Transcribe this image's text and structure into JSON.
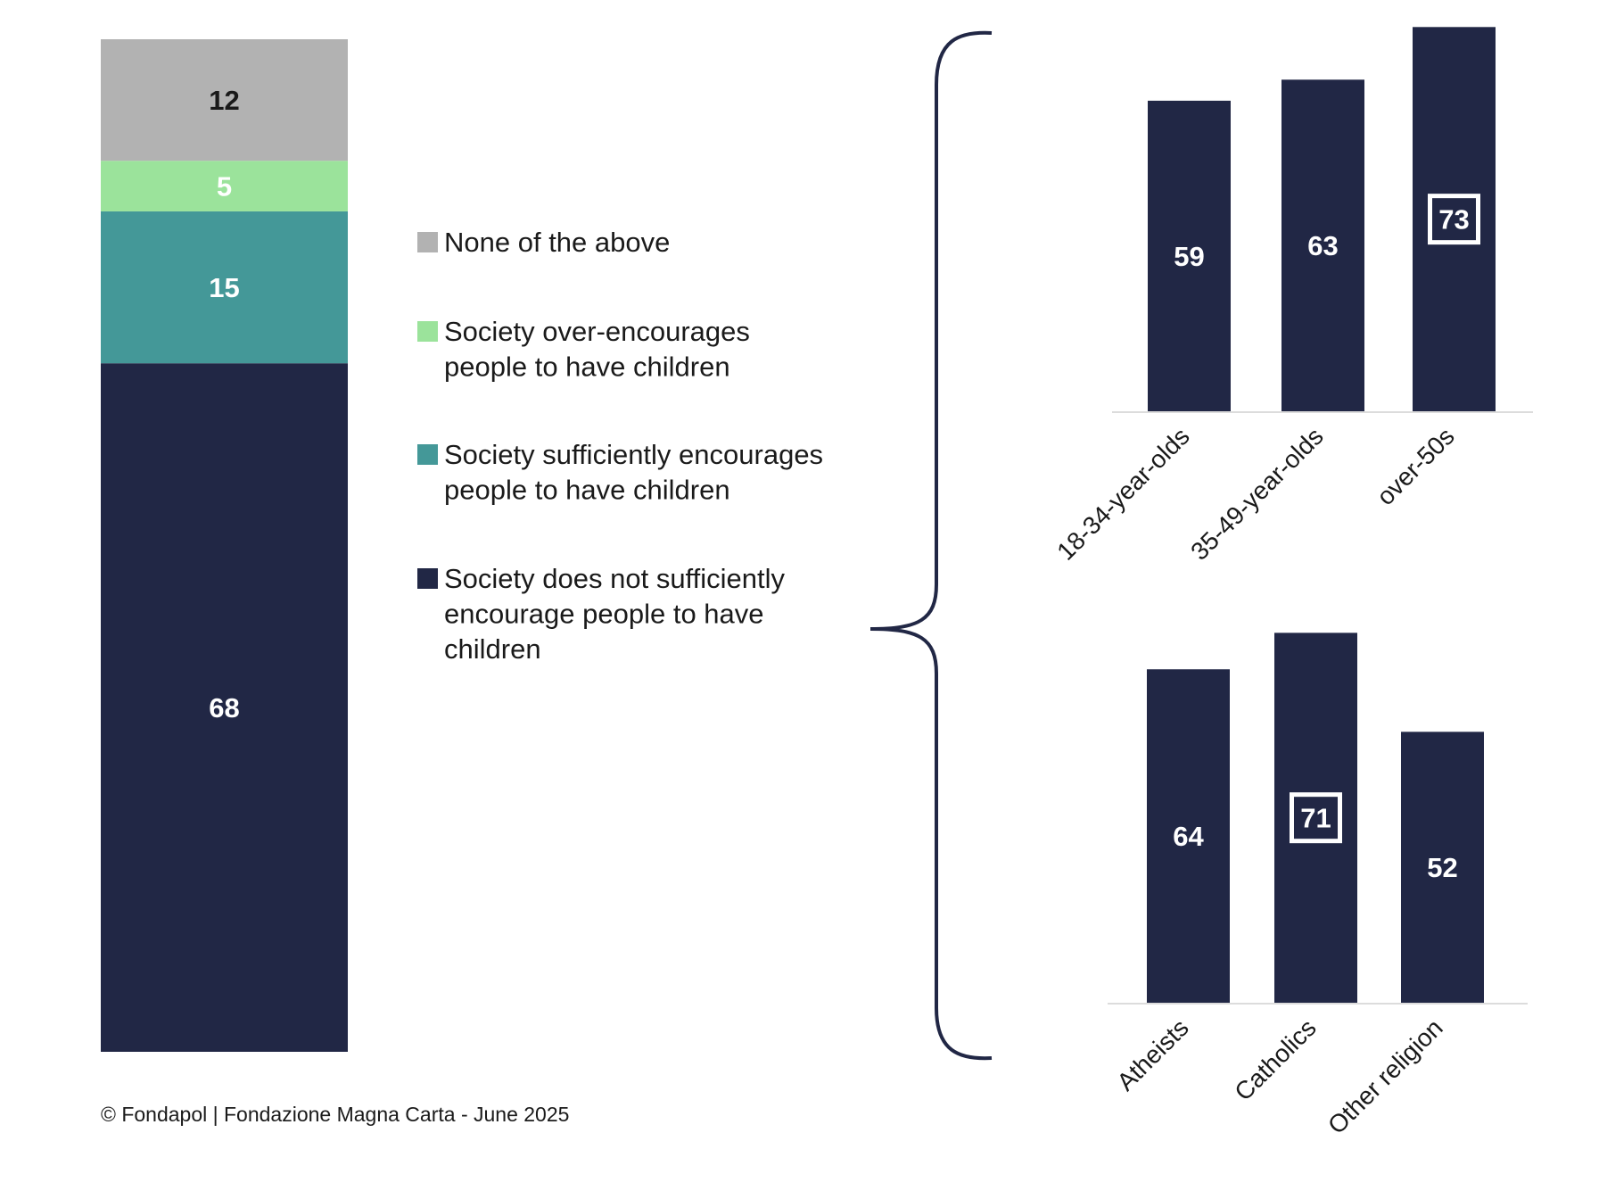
{
  "colors": {
    "navy": "#212745",
    "gray": "#b2b2b2",
    "green": "#9be39b",
    "teal": "#449898",
    "axis": "#dcdcdc"
  },
  "chart_data": [
    {
      "type": "bar",
      "stacked": true,
      "categories": [
        "Total"
      ],
      "series": [
        {
          "name": "Society does not sufficiently encourage people to have children",
          "values": [
            68
          ],
          "color": "#212745",
          "label_color": "#ffffff"
        },
        {
          "name": "Society sufficiently encourages people to have children",
          "values": [
            15
          ],
          "color": "#449898",
          "label_color": "#ffffff"
        },
        {
          "name": "Society over-encourages people to have children",
          "values": [
            5
          ],
          "color": "#9be39b",
          "label_color": "#ffffff"
        },
        {
          "name": "None of the above",
          "values": [
            12
          ],
          "color": "#b2b2b2",
          "label_color": "#1a1a1a"
        }
      ],
      "legend": [
        {
          "lines": [
            "None of the above"
          ],
          "color": "#b2b2b2"
        },
        {
          "lines": [
            "Society over-encourages",
            "people to have children"
          ],
          "color": "#9be39b"
        },
        {
          "lines": [
            "Society sufficiently encourages",
            "people to have children"
          ],
          "color": "#449898"
        },
        {
          "lines": [
            "Society does not sufficiently",
            "encourage people to have",
            "children"
          ],
          "color": "#212745"
        }
      ],
      "legend_placement": "right",
      "ylim": [
        0,
        100
      ]
    },
    {
      "type": "bar",
      "title": "",
      "categories": [
        "18-34-year-olds",
        "35-49-year-olds",
        "over-50s"
      ],
      "values": [
        59,
        63,
        73
      ],
      "highlighted": [
        "over-50s"
      ],
      "color": "#212745"
    },
    {
      "type": "bar",
      "title": "",
      "categories": [
        "Atheists",
        "Catholics",
        "Other religion"
      ],
      "values": [
        64,
        71,
        52
      ],
      "highlighted": [
        "Catholics"
      ],
      "color": "#212745"
    }
  ],
  "footer": "© Fondapol  | Fondazione Magna Carta - June 2025"
}
